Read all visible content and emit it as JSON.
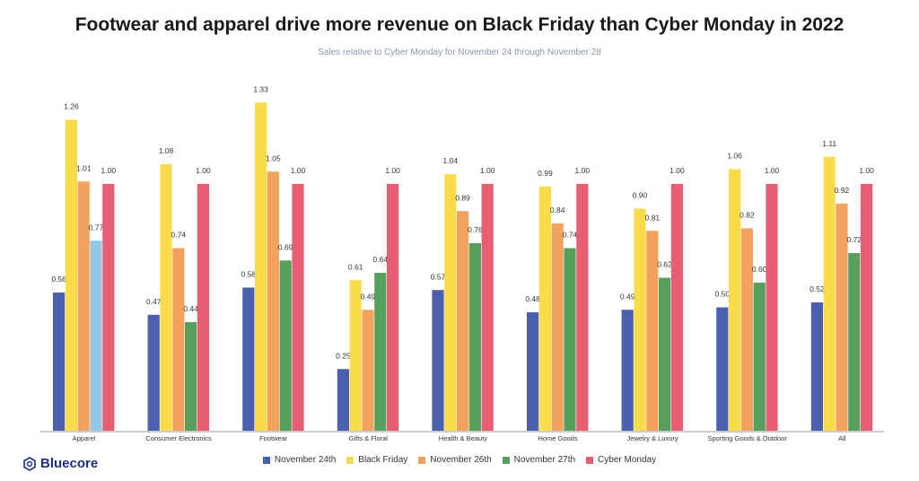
{
  "chart_data": {
    "type": "bar",
    "title": "Footwear and apparel drive more revenue on Black Friday than Cyber Monday in 2022",
    "subtitle": "Sales relative to Cyber Monday for November 24 through November 28",
    "categories": [
      "Apparel",
      "Consumer Electronics",
      "Footwear",
      "Gifts & Floral",
      "Health & Beauty",
      "Home Goods",
      "Jewelry & Luxury",
      "Sporting Goods & Outdoor",
      "All"
    ],
    "series": [
      {
        "name": "November 24th",
        "color": "#4a5fae",
        "values": [
          0.56,
          0.47,
          0.58,
          0.25,
          0.57,
          0.48,
          0.49,
          0.5,
          0.52
        ]
      },
      {
        "name": "Black Friday",
        "color": "#fadc4a",
        "values": [
          1.26,
          1.08,
          1.33,
          0.61,
          1.04,
          0.99,
          0.9,
          1.06,
          1.11
        ]
      },
      {
        "name": "November 26th",
        "color": "#f2a25c",
        "values": [
          1.01,
          0.74,
          1.05,
          0.49,
          0.89,
          0.84,
          0.81,
          0.82,
          0.92
        ]
      },
      {
        "name": "November 27th",
        "color": "#57a05c",
        "values": [
          0.77,
          0.44,
          0.69,
          0.64,
          0.76,
          0.74,
          0.62,
          0.6,
          0.72
        ]
      },
      {
        "name": "Cyber Monday",
        "color": "#e85f73",
        "values": [
          1.0,
          1.0,
          1.0,
          1.0,
          1.0,
          1.0,
          1.0,
          1.0,
          1.0
        ]
      }
    ],
    "highlight": {
      "category": "Apparel",
      "series": "November 27th",
      "color": "#94c6e7"
    },
    "ylim": [
      0,
      1.4
    ],
    "grid": false,
    "legend_placement": "bottom"
  },
  "brand": {
    "name": "Bluecore",
    "color": "#1b2e8c"
  }
}
